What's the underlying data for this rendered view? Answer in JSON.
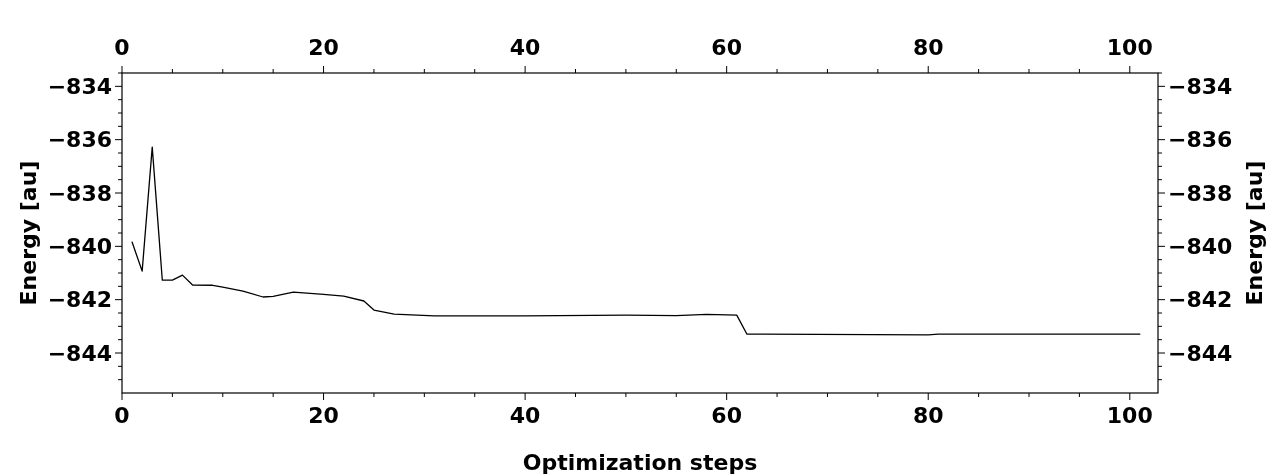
{
  "chart_data": {
    "type": "line",
    "xlabel": "Optimization steps",
    "ylabel": "Energy [au]",
    "y2label": "Energy [au]",
    "xlim": [
      0,
      102.8
    ],
    "ylim": [
      -845.5,
      -833.5
    ],
    "x2lim": [
      0,
      102.8
    ],
    "y2lim": [
      -845.5,
      -833.5
    ],
    "xticks": [
      0,
      {
        "value": 5,
        "label": null
      },
      {
        "value": 10,
        "label": null
      },
      {
        "value": 15,
        "label": null
      },
      20,
      {
        "value": 25,
        "label": null
      },
      {
        "value": 30,
        "label": null
      },
      {
        "value": 35,
        "label": null
      },
      40,
      {
        "value": 45,
        "label": null
      },
      {
        "value": 50,
        "label": null
      },
      {
        "value": 55,
        "label": null
      },
      60,
      {
        "value": 65,
        "label": null
      },
      {
        "value": 70,
        "label": null
      },
      {
        "value": 75,
        "label": null
      },
      80,
      {
        "value": 85,
        "label": null
      },
      {
        "value": 90,
        "label": null
      },
      {
        "value": 95,
        "label": null
      },
      100
    ],
    "x2ticks": [
      0,
      {
        "value": 5,
        "label": null
      },
      {
        "value": 10,
        "label": null
      },
      {
        "value": 15,
        "label": null
      },
      20,
      {
        "value": 25,
        "label": null
      },
      {
        "value": 30,
        "label": null
      },
      {
        "value": 35,
        "label": null
      },
      40,
      {
        "value": 45,
        "label": null
      },
      {
        "value": 50,
        "label": null
      },
      {
        "value": 55,
        "label": null
      },
      60,
      {
        "value": 65,
        "label": null
      },
      {
        "value": 70,
        "label": null
      },
      {
        "value": 75,
        "label": null
      },
      80,
      {
        "value": 85,
        "label": null
      },
      {
        "value": 90,
        "label": null
      },
      {
        "value": 95,
        "label": null
      },
      100
    ],
    "yticks": [
      {
        "value": -833.5,
        "label": null
      },
      {
        "value": -834,
        "label": "−834"
      },
      {
        "value": -834.5,
        "label": null
      },
      {
        "value": -835,
        "label": null
      },
      {
        "value": -835.5,
        "label": null
      },
      {
        "value": -836,
        "label": "−836"
      },
      {
        "value": -836.5,
        "label": null
      },
      {
        "value": -837,
        "label": null
      },
      {
        "value": -837.5,
        "label": null
      },
      {
        "value": -838,
        "label": "−838"
      },
      {
        "value": -838.5,
        "label": null
      },
      {
        "value": -839,
        "label": null
      },
      {
        "value": -839.5,
        "label": null
      },
      {
        "value": -840,
        "label": "−840"
      },
      {
        "value": -840.5,
        "label": null
      },
      {
        "value": -841,
        "label": null
      },
      {
        "value": -841.5,
        "label": null
      },
      {
        "value": -842,
        "label": "−842"
      },
      {
        "value": -842.5,
        "label": null
      },
      {
        "value": -843,
        "label": null
      },
      {
        "value": -843.5,
        "label": null
      },
      {
        "value": -844,
        "label": "−844"
      },
      {
        "value": -844.5,
        "label": null
      },
      {
        "value": -845,
        "label": null
      }
    ],
    "y2ticks": [
      {
        "value": -833.5,
        "label": null
      },
      {
        "value": -834,
        "label": "−834"
      },
      {
        "value": -834.5,
        "label": null
      },
      {
        "value": -835,
        "label": null
      },
      {
        "value": -835.5,
        "label": null
      },
      {
        "value": -836,
        "label": "−836"
      },
      {
        "value": -836.5,
        "label": null
      },
      {
        "value": -837,
        "label": null
      },
      {
        "value": -837.5,
        "label": null
      },
      {
        "value": -838,
        "label": "−838"
      },
      {
        "value": -838.5,
        "label": null
      },
      {
        "value": -839,
        "label": null
      },
      {
        "value": -839.5,
        "label": null
      },
      {
        "value": -840,
        "label": "−840"
      },
      {
        "value": -840.5,
        "label": null
      },
      {
        "value": -841,
        "label": null
      },
      {
        "value": -841.5,
        "label": null
      },
      {
        "value": -842,
        "label": "−842"
      },
      {
        "value": -842.5,
        "label": null
      },
      {
        "value": -843,
        "label": null
      },
      {
        "value": -843.5,
        "label": null
      },
      {
        "value": -844,
        "label": "−844"
      },
      {
        "value": -844.5,
        "label": null
      },
      {
        "value": -845,
        "label": null
      }
    ],
    "grid": false,
    "marker": "none",
    "line_style": "solid",
    "series": [
      {
        "color": "#000000",
        "x": [
          1,
          2,
          3,
          4,
          5,
          6,
          7,
          9,
          10,
          12,
          14,
          15,
          17,
          20,
          22,
          24,
          25,
          27,
          31,
          40,
          50,
          55,
          58,
          61,
          62,
          80,
          81,
          101
        ],
        "values": [
          -839.84,
          -840.93,
          -836.28,
          -841.27,
          -841.27,
          -841.08,
          -841.45,
          -841.46,
          -841.53,
          -841.68,
          -841.9,
          -841.88,
          -841.72,
          -841.8,
          -841.87,
          -842.05,
          -842.39,
          -842.54,
          -842.61,
          -842.61,
          -842.58,
          -842.6,
          -842.55,
          -842.58,
          -843.29,
          -843.32,
          -843.29,
          -843.29
        ]
      }
    ]
  }
}
